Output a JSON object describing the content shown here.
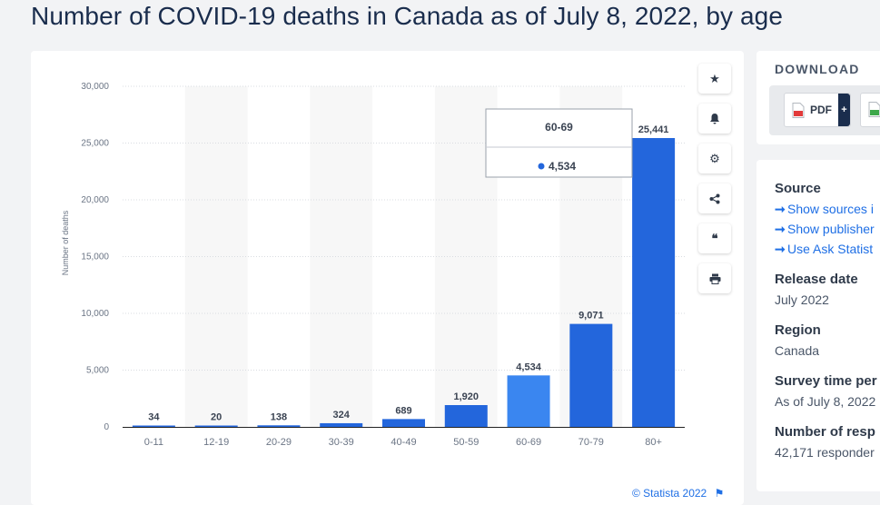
{
  "page": {
    "title": "Number of COVID-19 deaths in Canada as of July 8, 2022, by age"
  },
  "chart_data": {
    "type": "bar",
    "categories": [
      "0-11",
      "12-19",
      "20-29",
      "30-39",
      "40-49",
      "50-59",
      "60-69",
      "70-79",
      "80+"
    ],
    "values": [
      34,
      20,
      138,
      324,
      689,
      1920,
      4534,
      9071,
      25441
    ],
    "value_labels": [
      "34",
      "20",
      "138",
      "324",
      "689",
      "1,920",
      "4,534",
      "9,071",
      "25,441"
    ],
    "ylabel": "Number of deaths",
    "xlabel": "",
    "ylim": [
      0,
      30000
    ],
    "yticks": [
      0,
      5000,
      10000,
      15000,
      20000,
      25000,
      30000
    ],
    "ytick_labels": [
      "0",
      "5,000",
      "10,000",
      "15,000",
      "20,000",
      "25,000",
      "30,000"
    ],
    "grid": true,
    "bar_color": "#2366dc",
    "highlight_color": "#3a86f0",
    "highlighted_index": 6,
    "tooltip": {
      "category": "60-69",
      "value_label": "4,534"
    }
  },
  "toolbar": {
    "items": [
      {
        "name": "star-icon",
        "glyph": "★"
      },
      {
        "name": "bell-icon",
        "glyph": "🔔"
      },
      {
        "name": "gear-icon",
        "glyph": "⚙"
      },
      {
        "name": "share-icon",
        "glyph": "⋰"
      },
      {
        "name": "quote-icon",
        "glyph": "❝"
      },
      {
        "name": "print-icon",
        "glyph": "⎙"
      }
    ]
  },
  "credit": "© Statista 2022",
  "download": {
    "title": "DOWNLOAD",
    "pdf_label": "PDF",
    "plus_label": "+"
  },
  "info": {
    "source_label": "Source",
    "links": [
      "Show sources i",
      "Show publisher",
      "Use Ask Statist"
    ],
    "release_label": "Release date",
    "release_value": "July 2022",
    "region_label": "Region",
    "region_value": "Canada",
    "survey_label": "Survey time per",
    "survey_value": "As of July 8, 2022",
    "respondents_label": "Number of resp",
    "respondents_value": "42,171 responder"
  }
}
